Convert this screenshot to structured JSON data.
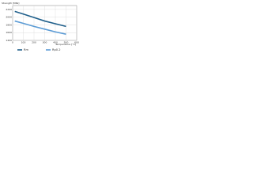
{
  "chart_data": {
    "type": "line",
    "x_label": "Temperature [°C]",
    "y_label": "Strength [MPa]",
    "x": [
      20,
      100,
      200,
      300,
      400,
      500
    ],
    "series": [
      {
        "name": "Rm",
        "color": "#1f5f8b",
        "values": [
          2150,
          2080,
          1990,
          1900,
          1830,
          1760
        ]
      },
      {
        "name": "Rp0.2",
        "color": "#5b9bd5",
        "values": [
          1900,
          1840,
          1760,
          1690,
          1620,
          1560
        ]
      }
    ],
    "xlim": [
      0,
      600
    ],
    "xticks": [
      0,
      100,
      200,
      300,
      400,
      500,
      600
    ],
    "ylim": [
      1400,
      2300
    ],
    "yticks": [
      1400,
      1600,
      1800,
      2000,
      2200
    ],
    "grid": true,
    "legend": "bottom"
  }
}
